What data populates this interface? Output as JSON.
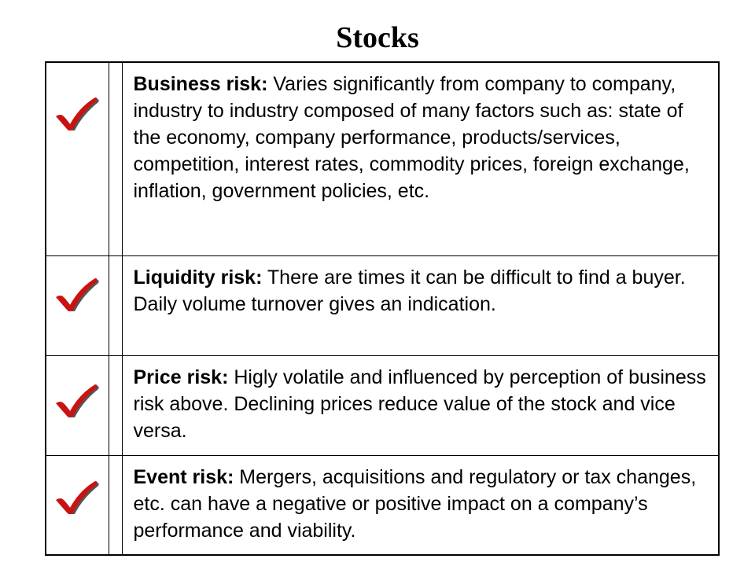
{
  "slide": {
    "title": "Stocks"
  },
  "colors": {
    "check_fill": "#cc1111",
    "check_shadow": "#555555",
    "border": "#000000"
  },
  "risks": [
    {
      "icon": "checkmark-icon",
      "name": "Business risk:",
      "description": " Varies significantly from company to company, industry to industry composed of many factors such as:  state of the economy, company performance, products/services, competition, interest rates, commodity prices, foreign exchange, inflation, government policies, etc."
    },
    {
      "icon": "checkmark-icon",
      "name": "Liquidity risk:",
      "description": " There are times it can be difficult to find a buyer.  Daily volume turnover gives an indication."
    },
    {
      "icon": "checkmark-icon",
      "name": "Price risk:",
      "description": " Higly volatile and influenced by perception of business risk above.  Declining prices reduce value of the stock and vice versa."
    },
    {
      "icon": "checkmark-icon",
      "name": "Event risk:",
      "description": " Mergers, acquisitions and regulatory or tax changes, etc. can have a negative or positive impact on a company’s performance and viability."
    }
  ]
}
